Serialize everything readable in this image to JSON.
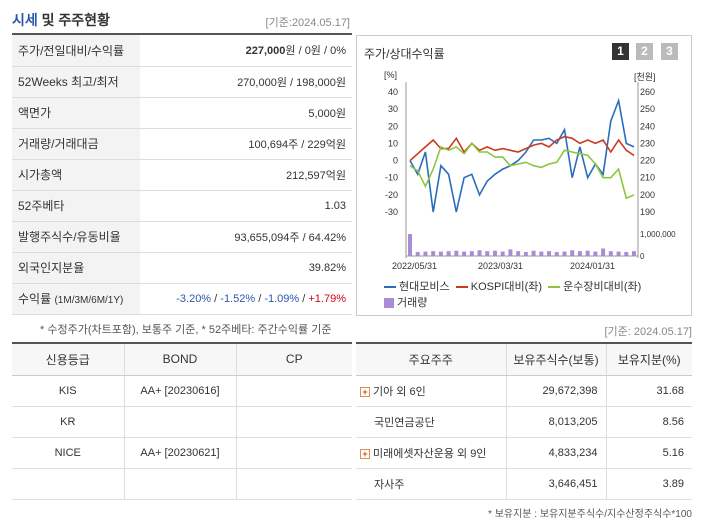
{
  "header": {
    "title_part1": "시세",
    "title_part2": "및 주주현황",
    "date": "[기준:2024.05.17]"
  },
  "info_rows": [
    {
      "label": "주가/전일대비/수익률",
      "value_main": "227,000",
      "value_rest": "원 / 0원 / 0%"
    },
    {
      "label": "52Weeks 최고/최저",
      "value": "270,000원 / 198,000원"
    },
    {
      "label": "액면가",
      "value": "5,000원"
    },
    {
      "label": "거래량/거래대금",
      "value": "100,694주 / 229억원"
    },
    {
      "label": "시가총액",
      "value": "212,597억원"
    },
    {
      "label": "52주베타",
      "value": "1.03"
    },
    {
      "label": "발행주식수/유동비율",
      "value": "93,655,094주 / 64.42%"
    },
    {
      "label": "외국인지분율",
      "value": "39.82%"
    }
  ],
  "returns": {
    "label": "수익률",
    "label_sub": "(1M/3M/6M/1Y)",
    "r1": "-3.20%",
    "r2": "-1.52%",
    "r3": "-1.09%",
    "r4": "+1.79%",
    "sep": "/ "
  },
  "note1": "* 수정주가(차트포함), 보통주 기준, * 52주베타: 주간수익률 기준",
  "chart_panel": {
    "title": "주가/상대수익률",
    "tabs": [
      "1",
      "2",
      "3"
    ],
    "legend": {
      "s1": "현대모비스",
      "s2": "KOSPI대비(좌)",
      "s3": "운수장비대비(좌)",
      "s4": "거래량"
    }
  },
  "chart_data": {
    "type": "line",
    "left_unit": "[%]",
    "right_unit": "[천원]",
    "left_ticks": [
      "40",
      "30",
      "20",
      "10",
      "0",
      "-10",
      "-20",
      "-30"
    ],
    "right_ticks": [
      "260",
      "250",
      "240",
      "230",
      "220",
      "210",
      "200",
      "190"
    ],
    "ylim_left": [
      -30,
      40
    ],
    "ylim_right": [
      190,
      260
    ],
    "x_labels": [
      "2022/05/31",
      "2023/03/31",
      "2024/01/31"
    ],
    "volume_tick": "1,000,000",
    "volume_zero": "0",
    "series": [
      {
        "name": "현대모비스",
        "color": "#2a6ebb",
        "values": [
          0,
          -8,
          5,
          -30,
          -3,
          -8,
          -30,
          -10,
          -8,
          -20,
          -12,
          -8,
          -5,
          -3,
          0,
          5,
          12,
          12,
          13,
          10,
          18,
          -10,
          8,
          -10,
          -2,
          -8,
          23,
          35,
          10,
          8
        ]
      },
      {
        "name": "KOSPI대비(좌)",
        "color": "#cc3a1e",
        "values": [
          0,
          4,
          8,
          12,
          7,
          7,
          13,
          5,
          10,
          6,
          8,
          6,
          7,
          6,
          5,
          7,
          9,
          10,
          8,
          12,
          14,
          13,
          10,
          12,
          10,
          12,
          5,
          12,
          6,
          3
        ]
      },
      {
        "name": "운수장비대비(좌)",
        "color": "#8cc63f",
        "values": [
          -3,
          -6,
          -15,
          -5,
          8,
          6,
          8,
          4,
          10,
          5,
          5,
          2,
          2,
          -3,
          -2,
          -1,
          -3,
          -4,
          -2,
          -1,
          6,
          5,
          4,
          3,
          -2,
          -10,
          -10,
          -5,
          -22,
          -20
        ]
      }
    ],
    "volume": [
      1.0,
      0.18,
      0.2,
      0.22,
      0.2,
      0.22,
      0.24,
      0.2,
      0.22,
      0.26,
      0.22,
      0.24,
      0.2,
      0.3,
      0.22,
      0.18,
      0.24,
      0.2,
      0.22,
      0.18,
      0.2,
      0.26,
      0.22,
      0.24,
      0.2,
      0.34,
      0.22,
      0.2,
      0.18,
      0.22
    ]
  },
  "date2": "[기준: 2024.05.17]",
  "credit": {
    "headers": [
      "신용등급",
      "BOND",
      "CP"
    ],
    "rows": [
      {
        "agency": "KIS",
        "bond": "AA+ [20230616]",
        "cp": ""
      },
      {
        "agency": "KR",
        "bond": "",
        "cp": ""
      },
      {
        "agency": "NICE",
        "bond": "AA+ [20230621]",
        "cp": ""
      },
      {
        "agency": "",
        "bond": "",
        "cp": ""
      }
    ]
  },
  "holders": {
    "headers": [
      "주요주주",
      "보유주식수(보통)",
      "보유지분(%)"
    ],
    "rows": [
      {
        "name": "기아 외 6인",
        "shares": "29,672,398",
        "pct": "31.68",
        "expand": "+"
      },
      {
        "name": "국민연금공단",
        "shares": "8,013,205",
        "pct": "8.56",
        "expand": ""
      },
      {
        "name": "미래에셋자산운용 외 9인",
        "shares": "4,833,234",
        "pct": "5.16",
        "expand": "+"
      },
      {
        "name": "자사주",
        "shares": "3,646,451",
        "pct": "3.89",
        "expand": ""
      }
    ]
  },
  "note2": "* 보유지분 : 보유지분주식수/지수산정주식수*100"
}
